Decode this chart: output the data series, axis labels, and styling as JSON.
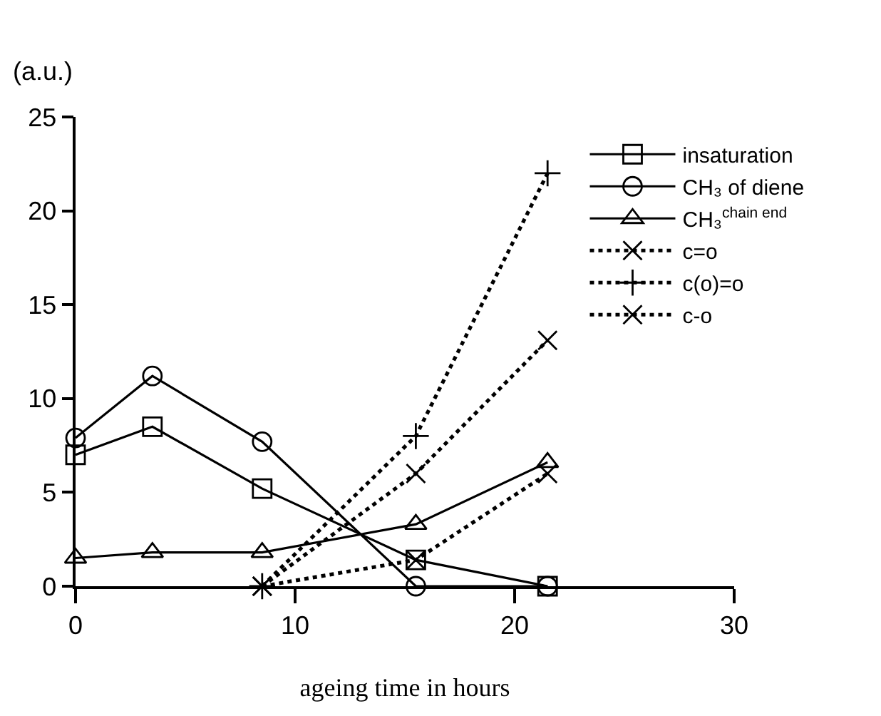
{
  "chart_data": {
    "type": "line",
    "ylabel": "(a.u.)",
    "xlabel": "ageing time in hours",
    "xlim": [
      0,
      30
    ],
    "xticks": [
      0,
      10,
      20,
      30
    ],
    "ylim": [
      0,
      25
    ],
    "yticks": [
      0,
      5,
      10,
      15,
      20,
      25
    ],
    "legend": "top right",
    "series": [
      {
        "name": "insaturation",
        "color": "#000000",
        "marker": "square",
        "line_style": "solid",
        "x": [
          0,
          3.5,
          8.5,
          15.5,
          21.5
        ],
        "values": [
          7,
          8.5,
          5.2,
          1.4,
          0
        ]
      },
      {
        "name": "CH₃ of diene",
        "color": "#000000",
        "marker": "circle",
        "line_style": "solid",
        "x": [
          0,
          3.5,
          8.5,
          15.5,
          21.5
        ],
        "values": [
          7.9,
          11.2,
          7.7,
          0,
          0
        ]
      },
      {
        "name": "CH₃$^{chain end}$",
        "color": "#000000",
        "marker": "triangle",
        "line_style": "solid",
        "x": [
          0,
          3.5,
          8.5,
          15.5,
          21.5
        ],
        "values": [
          1.5,
          1.8,
          1.8,
          3.3,
          6.6
        ]
      },
      {
        "name": "c=o",
        "color": "#000000",
        "marker": "cross",
        "line_style": "dotted",
        "x": [
          8.5,
          15.5,
          21.5
        ],
        "values": [
          0,
          1.4,
          6
        ]
      },
      {
        "name": "c(o)=o",
        "color": "#000000",
        "marker": "plus",
        "line_style": "dotted",
        "x": [
          8.5,
          15.5,
          21.5
        ],
        "values": [
          0,
          8,
          22
        ]
      },
      {
        "name": "c-o",
        "color": "#000000",
        "marker": "cross",
        "line_style": "dotted",
        "x": [
          8.5,
          15.5,
          21.5
        ],
        "values": [
          0,
          6,
          13.1
        ]
      }
    ]
  }
}
